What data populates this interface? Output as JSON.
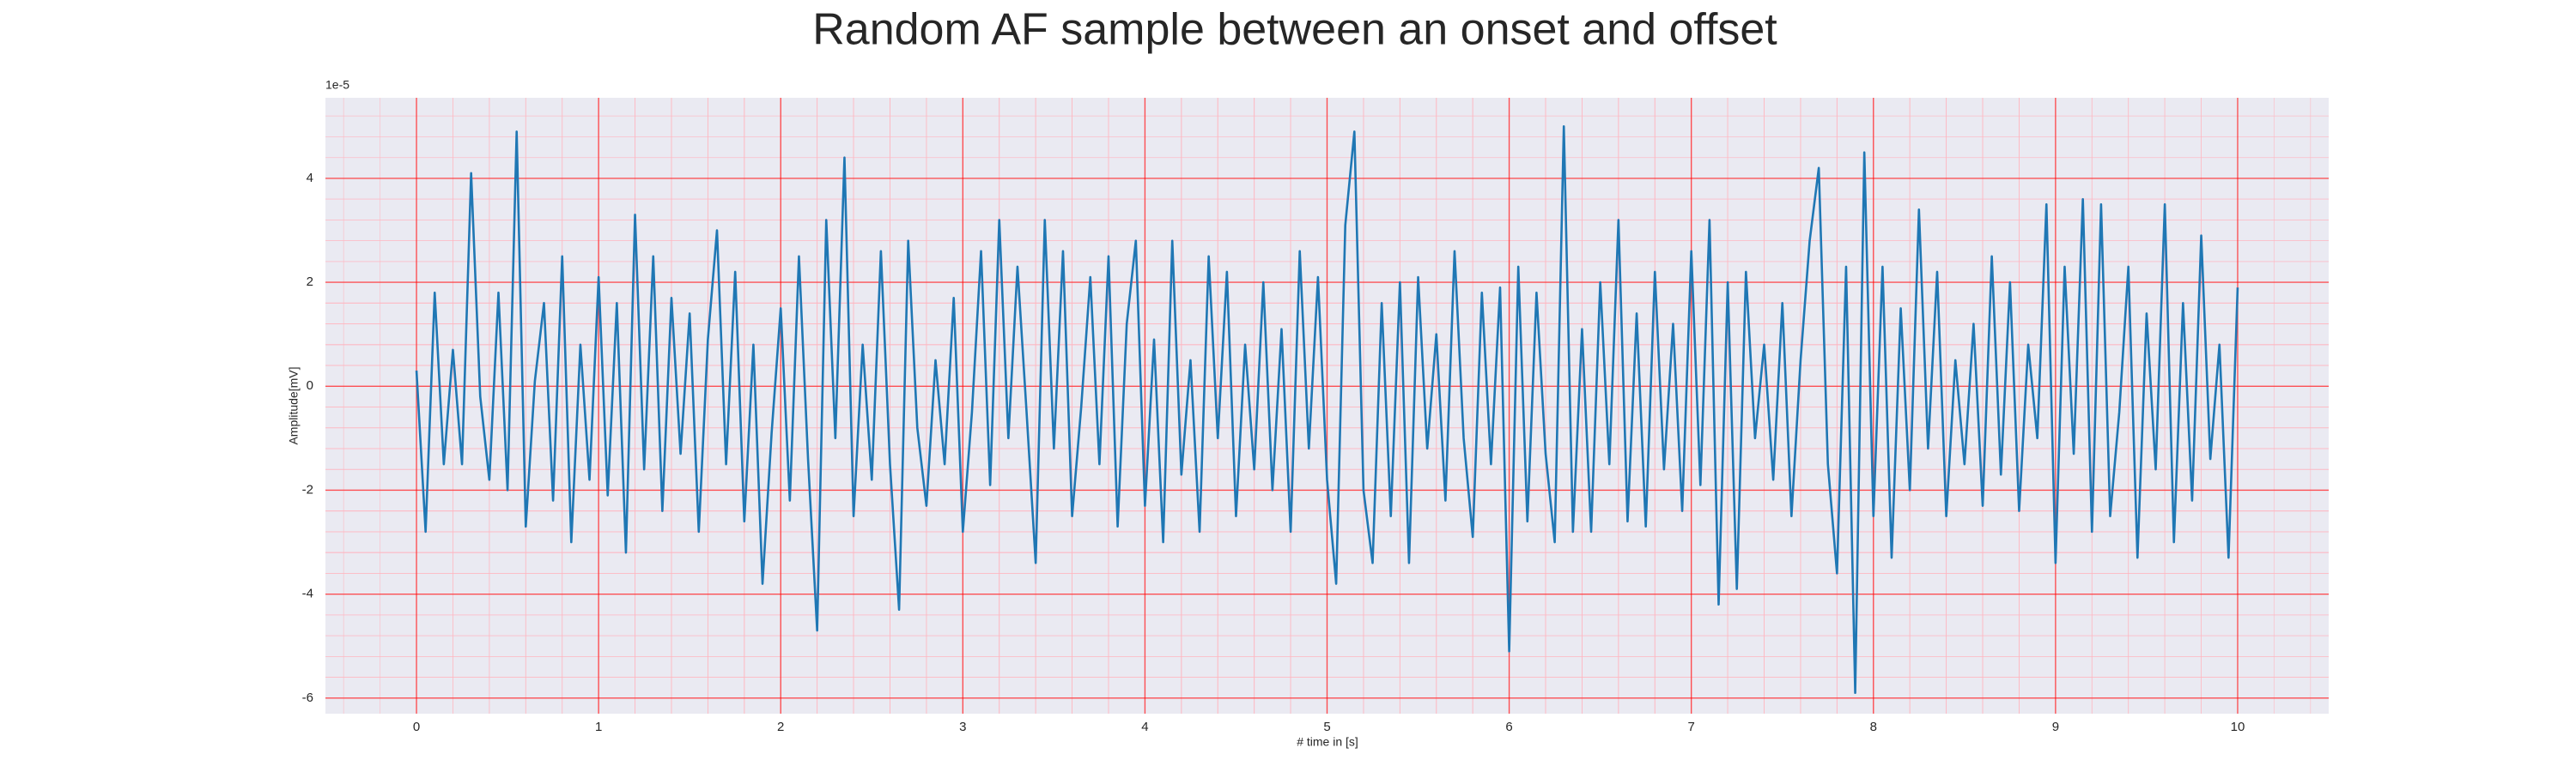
{
  "chart_data": {
    "type": "line",
    "title": "Random AF sample between an onset and offset",
    "x_label": "# time in [s]",
    "y_label": "Amplitude[mV]",
    "y_offset_label": "1e-5",
    "color": "#1f77b4",
    "grid": true,
    "minor_grid": true,
    "xlim": [
      -0.5,
      10.5
    ],
    "ylim": [
      -6.3,
      5.55
    ],
    "xticks": [
      0,
      1,
      2,
      3,
      4,
      5,
      6,
      7,
      8,
      9,
      10
    ],
    "yticks": [
      -6,
      -4,
      -2,
      0,
      2,
      4
    ],
    "x": [
      0,
      0.05,
      0.1,
      0.15,
      0.2,
      0.25,
      0.3,
      0.35,
      0.4,
      0.45,
      0.5,
      0.55,
      0.6,
      0.65,
      0.7,
      0.75,
      0.8,
      0.85,
      0.9,
      0.95,
      1,
      1.05,
      1.1,
      1.15,
      1.2,
      1.25,
      1.3,
      1.35,
      1.4,
      1.45,
      1.5,
      1.55,
      1.6,
      1.65,
      1.7,
      1.75,
      1.8,
      1.85,
      1.9,
      1.95,
      2,
      2.05,
      2.1,
      2.15,
      2.2,
      2.25,
      2.3,
      2.35,
      2.4,
      2.45,
      2.5,
      2.55,
      2.6,
      2.65,
      2.7,
      2.75,
      2.8,
      2.85,
      2.9,
      2.95,
      3,
      3.05,
      3.1,
      3.15,
      3.2,
      3.25,
      3.3,
      3.35,
      3.4,
      3.45,
      3.5,
      3.55,
      3.6,
      3.65,
      3.7,
      3.75,
      3.8,
      3.85,
      3.9,
      3.95,
      4,
      4.05,
      4.1,
      4.15,
      4.2,
      4.25,
      4.3,
      4.35,
      4.4,
      4.45,
      4.5,
      4.55,
      4.6,
      4.65,
      4.7,
      4.75,
      4.8,
      4.85,
      4.9,
      4.95,
      5,
      5.05,
      5.1,
      5.15,
      5.2,
      5.25,
      5.3,
      5.35,
      5.4,
      5.45,
      5.5,
      5.55,
      5.6,
      5.65,
      5.7,
      5.75,
      5.8,
      5.85,
      5.9,
      5.95,
      6,
      6.05,
      6.1,
      6.15,
      6.2,
      6.25,
      6.3,
      6.35,
      6.4,
      6.45,
      6.5,
      6.55,
      6.6,
      6.65,
      6.7,
      6.75,
      6.8,
      6.85,
      6.9,
      6.95,
      7,
      7.05,
      7.1,
      7.15,
      7.2,
      7.25,
      7.3,
      7.35,
      7.4,
      7.45,
      7.5,
      7.55,
      7.6,
      7.65,
      7.7,
      7.75,
      7.8,
      7.85,
      7.9,
      7.95,
      8,
      8.05,
      8.1,
      8.15,
      8.2,
      8.25,
      8.3,
      8.35,
      8.4,
      8.45,
      8.5,
      8.55,
      8.6,
      8.65,
      8.7,
      8.75,
      8.8,
      8.85,
      8.9,
      8.95,
      9,
      9.05,
      9.1,
      9.15,
      9.2,
      9.25,
      9.3,
      9.35,
      9.4,
      9.45,
      9.5,
      9.55,
      9.6,
      9.65,
      9.7,
      9.75,
      9.8,
      9.85,
      9.9,
      9.95,
      10
    ],
    "values": [
      0.3,
      -2.8,
      1.8,
      -1.5,
      0.7,
      -1.5,
      4.1,
      -0.2,
      -1.8,
      1.8,
      -2,
      4.9,
      -2.7,
      0.1,
      1.6,
      -2.2,
      2.5,
      -3,
      0.8,
      -1.8,
      2.1,
      -2.1,
      1.6,
      -3.2,
      3.3,
      -1.6,
      2.5,
      -2.4,
      1.7,
      -1.3,
      1.4,
      -2.8,
      0.9,
      3,
      -1.5,
      2.2,
      -2.6,
      0.8,
      -3.8,
      -0.9,
      1.5,
      -2.2,
      2.5,
      -1.4,
      -4.7,
      3.2,
      -1,
      4.4,
      -2.5,
      0.8,
      -1.8,
      2.6,
      -1.5,
      -4.3,
      2.8,
      -0.8,
      -2.3,
      0.5,
      -1.5,
      1.7,
      -2.8,
      -0.5,
      2.6,
      -1.9,
      3.2,
      -1,
      2.3,
      -0.5,
      -3.4,
      3.2,
      -1.2,
      2.6,
      -2.5,
      -0.4,
      2.1,
      -1.5,
      2.5,
      -2.7,
      1.2,
      2.8,
      -2.3,
      0.9,
      -3,
      2.8,
      -1.7,
      0.5,
      -2.8,
      2.5,
      -1,
      2.2,
      -2.5,
      0.8,
      -1.6,
      2,
      -2,
      1.1,
      -2.8,
      2.6,
      -1.2,
      2.1,
      -1.8,
      -3.8,
      3.1,
      4.9,
      -2,
      -3.4,
      1.6,
      -2.5,
      2,
      -3.4,
      2.1,
      -1.2,
      1,
      -2.2,
      2.6,
      -1,
      -2.9,
      1.8,
      -1.5,
      1.9,
      -5.1,
      2.3,
      -2.6,
      1.8,
      -1.3,
      -3,
      5,
      -2.8,
      1.1,
      -2.8,
      2,
      -1.5,
      3.2,
      -2.6,
      1.4,
      -2.7,
      2.2,
      -1.6,
      1.2,
      -2.4,
      2.6,
      -1.9,
      3.2,
      -4.2,
      2,
      -3.9,
      2.2,
      -1,
      0.8,
      -1.8,
      1.6,
      -2.5,
      0.5,
      2.8,
      4.2,
      -1.5,
      -3.6,
      2.3,
      -5.9,
      4.5,
      -2.5,
      2.3,
      -3.3,
      1.5,
      -2,
      3.4,
      -1.2,
      2.2,
      -2.5,
      0.5,
      -1.5,
      1.2,
      -2.3,
      2.5,
      -1.7,
      2,
      -2.4,
      0.8,
      -1,
      3.5,
      -3.4,
      2.3,
      -1.3,
      3.6,
      -2.8,
      3.5,
      -2.5,
      -0.5,
      2.3,
      -3.3,
      1.4,
      -1.6,
      3.5,
      -3,
      1.6,
      -2.2,
      2.9,
      -1.4,
      0.8,
      -3.3,
      1.9
    ]
  }
}
